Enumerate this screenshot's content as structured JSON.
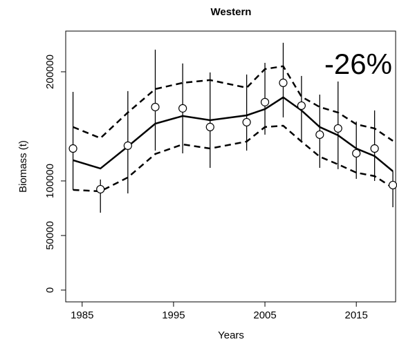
{
  "chart_data": {
    "type": "line",
    "title": "Western",
    "xlabel": "Years",
    "ylabel": "Biomass (t)",
    "annotation": "-26%",
    "annotation_color": "#ff0000",
    "xlim": [
      1983.2,
      2019.3
    ],
    "ylim": [
      -10800,
      237300
    ],
    "xticks": [
      1985,
      1995,
      2005,
      2015
    ],
    "yticks": [
      0,
      50000,
      100000,
      200000
    ],
    "x": [
      1984,
      1987,
      1990,
      1993,
      1996,
      1999,
      2003,
      2005,
      2007,
      2009,
      2011,
      2013,
      2015,
      2017,
      2019
    ],
    "fit": [
      119000,
      111400,
      131600,
      152500,
      159500,
      155700,
      160100,
      165800,
      176600,
      164600,
      149400,
      141800,
      129700,
      122800,
      108900
    ],
    "upper": [
      149400,
      139200,
      162700,
      184200,
      189900,
      192400,
      185400,
      202500,
      205100,
      177200,
      167700,
      162700,
      151900,
      148100,
      136700
    ],
    "lower": [
      91800,
      90500,
      103200,
      124700,
      133500,
      129700,
      136100,
      149400,
      150600,
      136100,
      122200,
      115200,
      107600,
      104400,
      93700
    ],
    "obs": [
      129700,
      92400,
      132300,
      167700,
      166500,
      149400,
      153800,
      172200,
      189900,
      169000,
      142400,
      148100,
      125300,
      129700,
      96200
    ],
    "obs_high": [
      181600,
      101300,
      182300,
      220300,
      207600,
      199400,
      197500,
      208200,
      226600,
      196200,
      179100,
      191100,
      154400,
      164600,
      108900
    ],
    "obs_low": [
      91800,
      70900,
      88600,
      127800,
      125300,
      112000,
      127800,
      142400,
      158200,
      136100,
      112000,
      110800,
      101900,
      100000,
      75900
    ]
  }
}
